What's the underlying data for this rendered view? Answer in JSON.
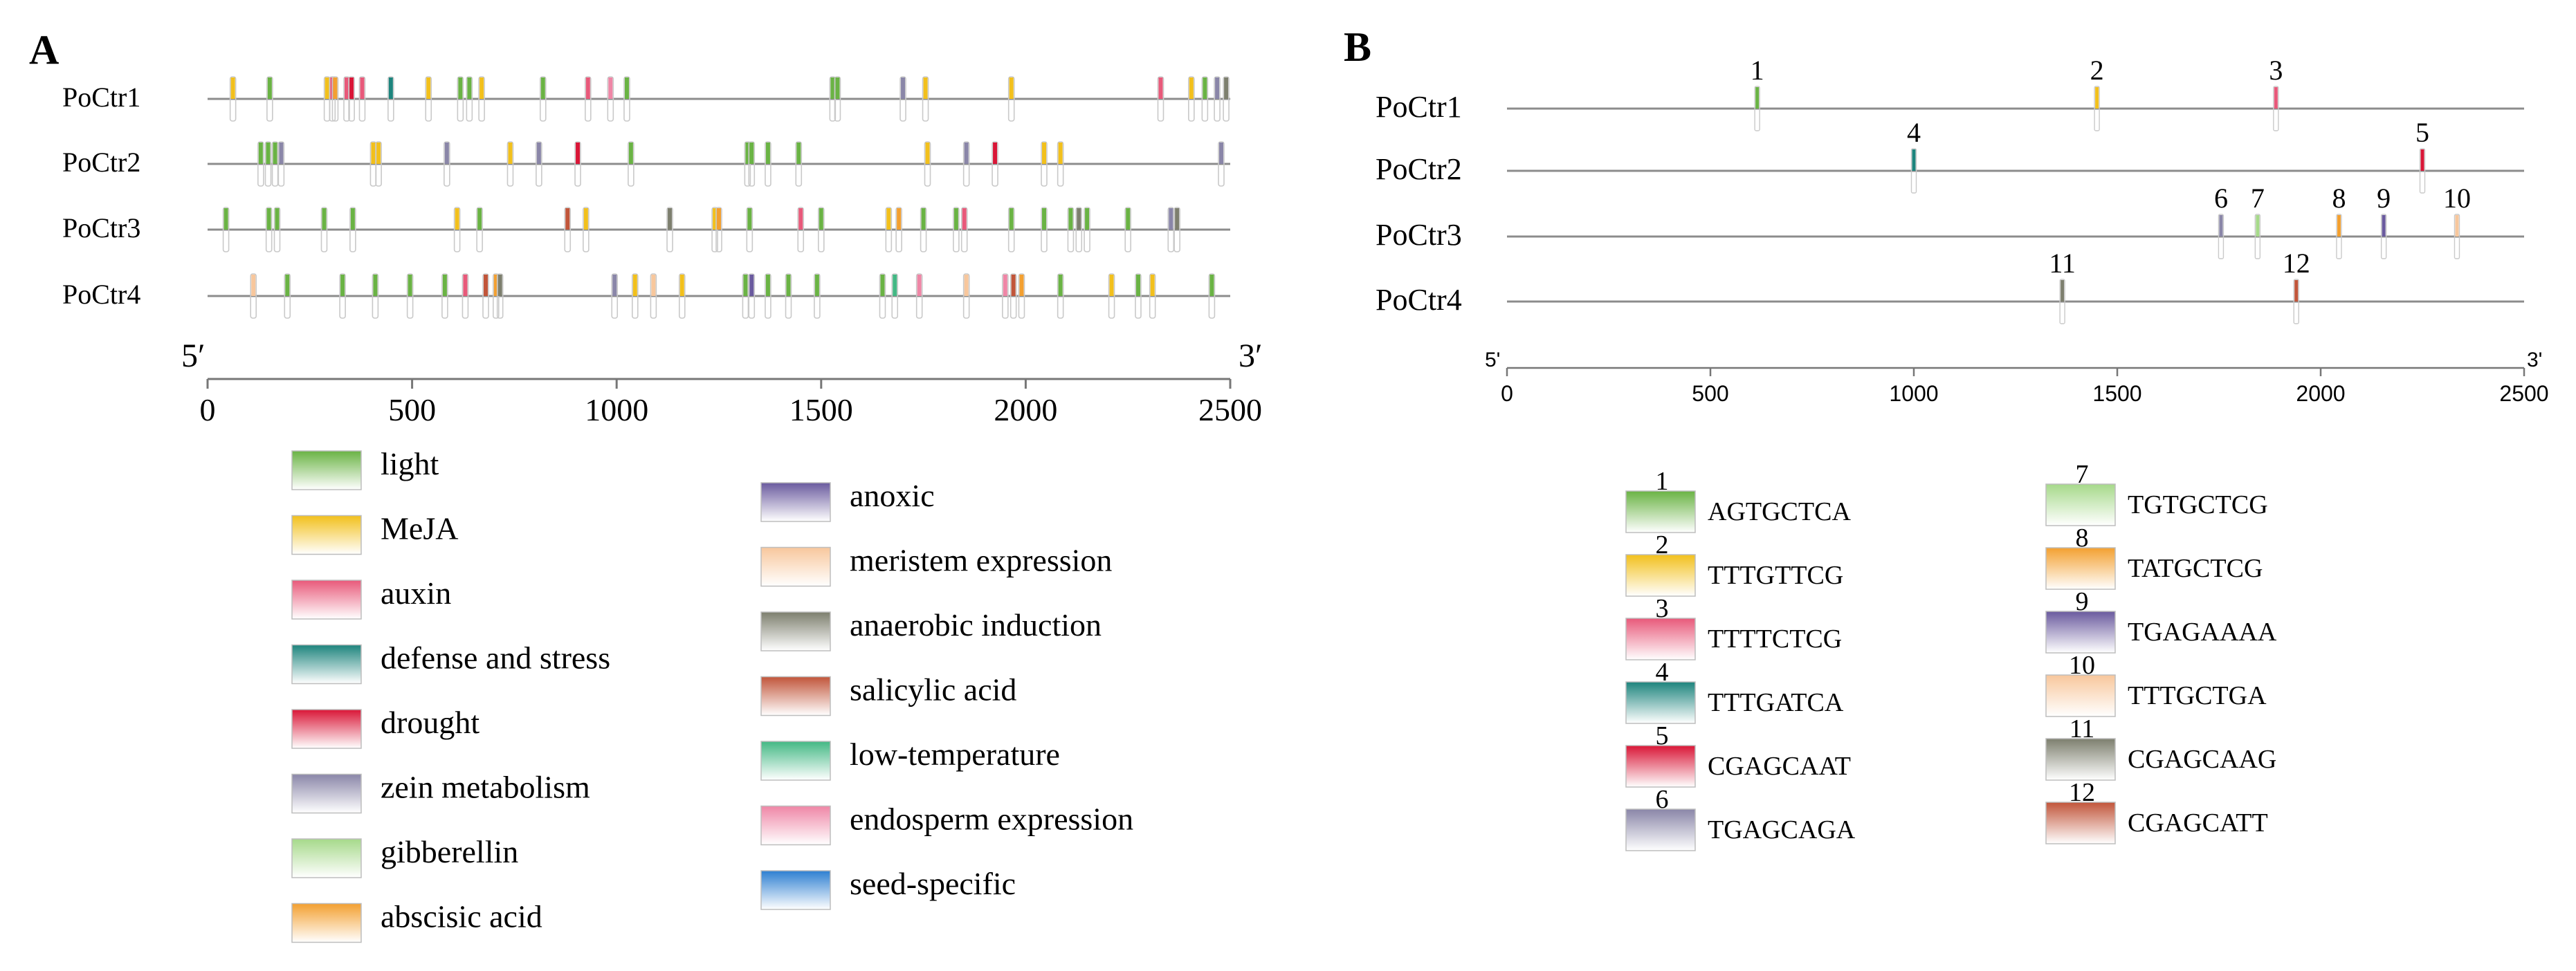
{
  "panel_a": {
    "label": "A",
    "x_axis": {
      "min": 0,
      "max": 2500,
      "ticks": [
        0,
        500,
        1000,
        1500,
        2000,
        2500
      ],
      "tick_labels": [
        "0",
        "500",
        "1000",
        "1500",
        "2000",
        "2500"
      ],
      "left_end": "5′",
      "right_end": "3′"
    },
    "genes": [
      {
        "name": "PoCtr1",
        "elements": [
          [
            62,
            "MeJA"
          ],
          [
            152,
            "light"
          ],
          [
            292,
            "MeJA"
          ],
          [
            305,
            "auxin"
          ],
          [
            312,
            "abscisic acid"
          ],
          [
            340,
            "auxin"
          ],
          [
            352,
            "drought"
          ],
          [
            378,
            "auxin"
          ],
          [
            448,
            "defense and stress"
          ],
          [
            540,
            "MeJA"
          ],
          [
            618,
            "light"
          ],
          [
            640,
            "light"
          ],
          [
            670,
            "MeJA"
          ],
          [
            820,
            "light"
          ],
          [
            930,
            "auxin"
          ],
          [
            985,
            "endosperm expression"
          ],
          [
            1025,
            "light"
          ],
          [
            1528,
            "light"
          ],
          [
            1540,
            "light"
          ],
          [
            1700,
            "zein metabolism"
          ],
          [
            1755,
            "MeJA"
          ],
          [
            1965,
            "MeJA"
          ],
          [
            2330,
            "auxin"
          ],
          [
            2405,
            "MeJA"
          ],
          [
            2438,
            "light"
          ],
          [
            2468,
            "zein metabolism"
          ],
          [
            2490,
            "anaerobic induction"
          ]
        ]
      },
      {
        "name": "PoCtr2",
        "elements": [
          [
            130,
            "light"
          ],
          [
            148,
            "light"
          ],
          [
            165,
            "light"
          ],
          [
            180,
            "zein metabolism"
          ],
          [
            405,
            "MeJA"
          ],
          [
            418,
            "MeJA"
          ],
          [
            585,
            "zein metabolism"
          ],
          [
            740,
            "MeJA"
          ],
          [
            810,
            "zein metabolism"
          ],
          [
            905,
            "drought"
          ],
          [
            1035,
            "light"
          ],
          [
            1320,
            "light"
          ],
          [
            1330,
            "light"
          ],
          [
            1370,
            "light"
          ],
          [
            1445,
            "light"
          ],
          [
            1760,
            "MeJA"
          ],
          [
            1855,
            "zein metabolism"
          ],
          [
            1925,
            "drought"
          ],
          [
            2045,
            "MeJA"
          ],
          [
            2085,
            "MeJA"
          ],
          [
            2478,
            "zein metabolism"
          ]
        ]
      },
      {
        "name": "PoCtr3",
        "elements": [
          [
            45,
            "light"
          ],
          [
            150,
            "light"
          ],
          [
            170,
            "light"
          ],
          [
            285,
            "light"
          ],
          [
            355,
            "light"
          ],
          [
            610,
            "MeJA"
          ],
          [
            665,
            "light"
          ],
          [
            880,
            "salicylic acid"
          ],
          [
            925,
            "MeJA"
          ],
          [
            1130,
            "anaerobic induction"
          ],
          [
            1240,
            "MeJA"
          ],
          [
            1250,
            "abscisic acid"
          ],
          [
            1325,
            "light"
          ],
          [
            1450,
            "auxin"
          ],
          [
            1500,
            "light"
          ],
          [
            1665,
            "MeJA"
          ],
          [
            1690,
            "abscisic acid"
          ],
          [
            1750,
            "light"
          ],
          [
            1830,
            "light"
          ],
          [
            1850,
            "auxin"
          ],
          [
            1965,
            "light"
          ],
          [
            2045,
            "light"
          ],
          [
            2110,
            "light"
          ],
          [
            2130,
            "anaerobic induction"
          ],
          [
            2150,
            "light"
          ],
          [
            2250,
            "light"
          ],
          [
            2355,
            "zein metabolism"
          ],
          [
            2370,
            "anaerobic induction"
          ]
        ]
      },
      {
        "name": "PoCtr4",
        "elements": [
          [
            112,
            "meristem expression"
          ],
          [
            195,
            "light"
          ],
          [
            330,
            "light"
          ],
          [
            410,
            "light"
          ],
          [
            495,
            "light"
          ],
          [
            580,
            "light"
          ],
          [
            630,
            "auxin"
          ],
          [
            680,
            "salicylic acid"
          ],
          [
            705,
            "abscisic acid"
          ],
          [
            715,
            "anaerobic induction"
          ],
          [
            995,
            "zein metabolism"
          ],
          [
            1045,
            "MeJA"
          ],
          [
            1090,
            "meristem expression"
          ],
          [
            1160,
            "MeJA"
          ],
          [
            1315,
            "light"
          ],
          [
            1330,
            "anoxic"
          ],
          [
            1370,
            "light"
          ],
          [
            1420,
            "light"
          ],
          [
            1490,
            "light"
          ],
          [
            1650,
            "light"
          ],
          [
            1680,
            "low-temperature"
          ],
          [
            1740,
            "endosperm expression"
          ],
          [
            1855,
            "meristem expression"
          ],
          [
            1950,
            "endosperm expression"
          ],
          [
            1970,
            "salicylic acid"
          ],
          [
            1990,
            "abscisic acid"
          ],
          [
            2085,
            "light"
          ],
          [
            2210,
            "MeJA"
          ],
          [
            2275,
            "light"
          ],
          [
            2310,
            "MeJA"
          ],
          [
            2455,
            "light"
          ]
        ]
      }
    ],
    "legend": [
      {
        "label": "light",
        "color": "#6ab344"
      },
      {
        "label": "MeJA",
        "color": "#f2c01c"
      },
      {
        "label": "auxin",
        "color": "#e8597a"
      },
      {
        "label": "defense and stress",
        "color": "#1d847d"
      },
      {
        "label": "drought",
        "color": "#d91637"
      },
      {
        "label": "zein metabolism",
        "color": "#8a86a8"
      },
      {
        "label": "gibberellin",
        "color": "#a6d98a"
      },
      {
        "label": "abscisic acid",
        "color": "#f3a030"
      },
      {
        "label": "anoxic",
        "color": "#6a5a9e"
      },
      {
        "label": "meristem expression",
        "color": "#f8c79c"
      },
      {
        "label": "anaerobic induction",
        "color": "#7d7f6e"
      },
      {
        "label": "salicylic acid",
        "color": "#c1553a"
      },
      {
        "label": "low-temperature",
        "color": "#43b884"
      },
      {
        "label": "endosperm expression",
        "color": "#ef86a6"
      },
      {
        "label": "seed-specific",
        "color": "#2d7fd1"
      }
    ]
  },
  "panel_b": {
    "label": "B",
    "x_axis": {
      "min": 0,
      "max": 2500,
      "ticks": [
        0,
        500,
        1000,
        1500,
        2000,
        2500
      ],
      "tick_labels": [
        "0",
        "500",
        "1000",
        "1500",
        "2000",
        "2500"
      ],
      "left_end": "5'",
      "right_end": "3'"
    },
    "genes": [
      {
        "name": "PoCtr1",
        "sites": [
          [
            615,
            "1"
          ],
          [
            1450,
            "2"
          ],
          [
            1890,
            "3"
          ]
        ]
      },
      {
        "name": "PoCtr2",
        "sites": [
          [
            1000,
            "4"
          ],
          [
            2250,
            "5"
          ]
        ]
      },
      {
        "name": "PoCtr3",
        "sites": [
          [
            1755,
            "6"
          ],
          [
            1845,
            "7"
          ],
          [
            2045,
            "8"
          ],
          [
            2155,
            "9"
          ],
          [
            2335,
            "10"
          ]
        ]
      },
      {
        "name": "PoCtr4",
        "sites": [
          [
            1365,
            "11"
          ],
          [
            1940,
            "12"
          ]
        ]
      }
    ],
    "motifs": [
      {
        "num": "1",
        "seq": "AGTGCTCA",
        "color": "#6ab344"
      },
      {
        "num": "2",
        "seq": "TTTGTTCG",
        "color": "#f2c01c"
      },
      {
        "num": "3",
        "seq": "TTTTCTCG",
        "color": "#e8597a"
      },
      {
        "num": "4",
        "seq": "TTTGATCA",
        "color": "#1d847d"
      },
      {
        "num": "5",
        "seq": "CGAGCAAT",
        "color": "#d91637"
      },
      {
        "num": "6",
        "seq": "TGAGCAGA",
        "color": "#8a86a8"
      },
      {
        "num": "7",
        "seq": "TGTGCTCG",
        "color": "#a6d98a"
      },
      {
        "num": "8",
        "seq": "TATGCTCG",
        "color": "#f3a030"
      },
      {
        "num": "9",
        "seq": "TGAGAAAA",
        "color": "#6a5a9e"
      },
      {
        "num": "10",
        "seq": "TTTGCTGA",
        "color": "#f8c79c"
      },
      {
        "num": "11",
        "seq": "CGAGCAAG",
        "color": "#7d7f6e"
      },
      {
        "num": "12",
        "seq": "CGAGCATT",
        "color": "#c1553a"
      }
    ]
  }
}
